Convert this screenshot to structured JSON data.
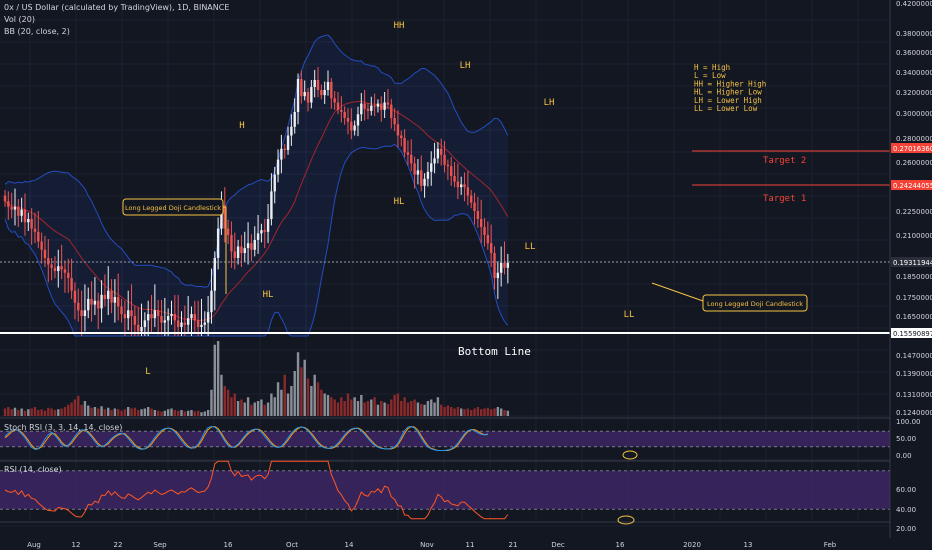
{
  "header": {
    "symbol_line": "0x / US Dollar (calculated by TradingView), 1D, BINANCE",
    "vol_line": "Vol (20)",
    "bb_line": "BB (20, close, 2)",
    "stoch_line": "Stoch RSI (3, 3, 14, 14, close)",
    "rsi_line": "RSI (14, close)"
  },
  "colors": {
    "background": "#131722",
    "up": "#eceff1",
    "down": "#ef5350",
    "bb": "#2962ff",
    "bb_basis": "#c62828",
    "target_line": "#f44336",
    "annotation": "#f6c343",
    "panel": "#4a2a7a",
    "stoch_k": "#2196f3",
    "stoch_d": "#ff9800",
    "rsi": "#ff5722"
  },
  "chart_data": {
    "type": "candlestick",
    "price_axis": [
      "0.42000000",
      "0.38000000",
      "0.36000000",
      "0.34000000",
      "0.32000000",
      "0.30000000",
      "0.28000000",
      "0.26000000",
      "0.22500000",
      "0.21000000",
      "0.18500000",
      "0.17500000",
      "0.16500000",
      "0.14700000",
      "0.13900000",
      "0.13100000",
      "0.12400000"
    ],
    "price_labels": [
      {
        "text": "0.27016360",
        "kind": "target"
      },
      {
        "text": "0.24244055",
        "kind": "target"
      },
      {
        "text": "0.19311944",
        "kind": "current"
      },
      {
        "text": "0.15590897",
        "kind": "bottom"
      }
    ],
    "x_labels": [
      "Aug",
      "12",
      "22",
      "Sep",
      "16",
      "Oct",
      "14",
      "Nov",
      "11",
      "21",
      "Dec",
      "16",
      "2020",
      "13",
      "Feb"
    ],
    "stoch_axis": [
      "100.00",
      "50.00",
      "0.00"
    ],
    "rsi_axis": [
      "60.00",
      "40.00",
      "20.00"
    ],
    "levels": [
      {
        "name": "Target 2",
        "value": 0.27016
      },
      {
        "name": "Target 1",
        "value": 0.24244
      },
      {
        "name": "Bottom Line",
        "value": 0.15591
      }
    ],
    "pivots": [
      "H",
      "HH",
      "LH",
      "LH",
      "HL",
      "HL",
      "L",
      "LL",
      "LL"
    ],
    "legend_lines": [
      "H = High",
      "L = Low",
      "HH = Higher High",
      "HL = Higher Low",
      "LH = Lower High",
      "LL = Lower Low"
    ],
    "callouts": [
      "Long Legged Doji Candlestick",
      "Long Legged Doji Candlestick"
    ],
    "closes": [
      0.232,
      0.228,
      0.226,
      0.228,
      0.222,
      0.226,
      0.218,
      0.22,
      0.214,
      0.212,
      0.206,
      0.201,
      0.196,
      0.192,
      0.19,
      0.188,
      0.191,
      0.189,
      0.187,
      0.184,
      0.178,
      0.172,
      0.168,
      0.165,
      0.168,
      0.174,
      0.171,
      0.173,
      0.169,
      0.176,
      0.174,
      0.178,
      0.172,
      0.175,
      0.17,
      0.166,
      0.164,
      0.168,
      0.165,
      0.161,
      0.158,
      0.16,
      0.163,
      0.166,
      0.164,
      0.168,
      0.165,
      0.162,
      0.163,
      0.165,
      0.166,
      0.163,
      0.16,
      0.162,
      0.161,
      0.164,
      0.166,
      0.163,
      0.16,
      0.161,
      0.162,
      0.167,
      0.178,
      0.196,
      0.214,
      0.229,
      0.214,
      0.21,
      0.2,
      0.196,
      0.203,
      0.199,
      0.202,
      0.205,
      0.201,
      0.207,
      0.211,
      0.213,
      0.212,
      0.22,
      0.239,
      0.251,
      0.262,
      0.271,
      0.27,
      0.282,
      0.289,
      0.301,
      0.333,
      0.316,
      0.32,
      0.31,
      0.325,
      0.332,
      0.322,
      0.317,
      0.322,
      0.33,
      0.314,
      0.31,
      0.303,
      0.301,
      0.296,
      0.293,
      0.286,
      0.29,
      0.299,
      0.309,
      0.304,
      0.302,
      0.307,
      0.306,
      0.309,
      0.303,
      0.31,
      0.308,
      0.296,
      0.291,
      0.282,
      0.28,
      0.268,
      0.266,
      0.259,
      0.251,
      0.254,
      0.243,
      0.248,
      0.253,
      0.259,
      0.263,
      0.271,
      0.266,
      0.258,
      0.257,
      0.25,
      0.246,
      0.242,
      0.244,
      0.242,
      0.236,
      0.231,
      0.225,
      0.22,
      0.215,
      0.21,
      0.205,
      0.199,
      0.184,
      0.187,
      0.193,
      0.19,
      0.193
    ],
    "volume": [
      0.1,
      0.12,
      0.09,
      0.11,
      0.08,
      0.1,
      0.07,
      0.09,
      0.1,
      0.12,
      0.08,
      0.09,
      0.07,
      0.11,
      0.1,
      0.08,
      0.09,
      0.1,
      0.12,
      0.15,
      0.18,
      0.22,
      0.27,
      0.15,
      0.2,
      0.14,
      0.11,
      0.12,
      0.1,
      0.13,
      0.09,
      0.11,
      0.08,
      0.1,
      0.09,
      0.07,
      0.09,
      0.12,
      0.1,
      0.11,
      0.08,
      0.09,
      0.1,
      0.12,
      0.1,
      0.08,
      0.07,
      0.06,
      0.07,
      0.09,
      0.1,
      0.08,
      0.07,
      0.08,
      0.06,
      0.07,
      0.08,
      0.06,
      0.07,
      0.05,
      0.06,
      0.08,
      0.35,
      0.95,
      1.0,
      0.55,
      0.4,
      0.35,
      0.25,
      0.3,
      0.2,
      0.22,
      0.18,
      0.25,
      0.15,
      0.18,
      0.2,
      0.22,
      0.15,
      0.18,
      0.3,
      0.25,
      0.45,
      0.35,
      0.55,
      0.3,
      0.4,
      0.6,
      0.85,
      0.65,
      0.75,
      0.5,
      0.4,
      0.55,
      0.45,
      0.35,
      0.3,
      0.28,
      0.25,
      0.22,
      0.18,
      0.25,
      0.2,
      0.3,
      0.22,
      0.25,
      0.2,
      0.28,
      0.18,
      0.2,
      0.22,
      0.25,
      0.15,
      0.2,
      0.18,
      0.16,
      0.22,
      0.28,
      0.3,
      0.2,
      0.25,
      0.18,
      0.2,
      0.22,
      0.18,
      0.16,
      0.15,
      0.2,
      0.22,
      0.18,
      0.25,
      0.15,
      0.12,
      0.14,
      0.12,
      0.1,
      0.12,
      0.1,
      0.09,
      0.1,
      0.08,
      0.1,
      0.12,
      0.09,
      0.1,
      0.11,
      0.09,
      0.1,
      0.12,
      0.1,
      0.08,
      0.07
    ],
    "stoch_k": [
      60,
      72,
      84,
      86,
      82,
      70,
      55,
      35,
      18,
      10,
      12,
      28,
      50,
      66,
      76,
      64,
      48,
      30,
      22,
      26,
      42,
      60,
      76,
      86,
      83,
      72,
      58,
      40,
      26,
      20,
      26,
      38,
      52,
      62,
      70,
      72,
      66,
      52,
      36,
      22,
      14,
      10,
      12,
      22,
      38,
      56,
      72,
      84,
      90,
      92,
      88,
      78,
      62,
      44,
      28,
      18,
      14,
      18,
      30,
      52,
      78,
      94,
      98,
      96,
      84,
      64,
      42,
      26,
      18,
      20,
      30,
      46,
      62,
      76,
      84,
      88,
      86,
      76,
      60,
      44,
      30,
      20,
      18,
      22,
      36,
      54,
      72,
      86,
      94,
      96,
      92,
      82,
      66,
      48,
      32,
      22,
      16,
      14,
      16,
      22,
      34,
      50,
      66,
      80,
      88,
      92,
      90,
      82,
      68,
      52,
      38,
      26,
      18,
      14,
      12,
      12,
      14,
      20,
      34,
      58,
      82,
      96,
      98,
      92,
      76,
      54,
      34,
      20,
      12,
      8,
      6,
      6,
      6,
      8,
      12,
      20,
      34,
      52,
      70,
      82,
      86,
      82,
      74,
      68,
      66,
      70
    ],
    "stoch_d": [
      55,
      65,
      78,
      84,
      84,
      76,
      62,
      44,
      26,
      14,
      12,
      20,
      38,
      56,
      70,
      70,
      56,
      38,
      26,
      24,
      34,
      52,
      68,
      80,
      84,
      78,
      64,
      48,
      32,
      22,
      24,
      32,
      46,
      58,
      66,
      70,
      70,
      58,
      44,
      28,
      18,
      12,
      12,
      18,
      30,
      48,
      64,
      78,
      88,
      92,
      90,
      82,
      70,
      52,
      36,
      22,
      16,
      16,
      24,
      42,
      66,
      86,
      96,
      98,
      90,
      72,
      50,
      32,
      20,
      18,
      26,
      40,
      56,
      70,
      80,
      86,
      88,
      82,
      68,
      52,
      36,
      24,
      18,
      20,
      30,
      46,
      64,
      80,
      90,
      96,
      94,
      86,
      72,
      56,
      38,
      26,
      18,
      14,
      14,
      18,
      28,
      42,
      60,
      74,
      86,
      90,
      92,
      86,
      74,
      58,
      44,
      30,
      20,
      16,
      12,
      12,
      12,
      16,
      28,
      48,
      72,
      90,
      98,
      96,
      84,
      62,
      42,
      24,
      14,
      10,
      6,
      6,
      6,
      6,
      10,
      16,
      28,
      46,
      64,
      78,
      86,
      86,
      80,
      72,
      66,
      68
    ]
  }
}
